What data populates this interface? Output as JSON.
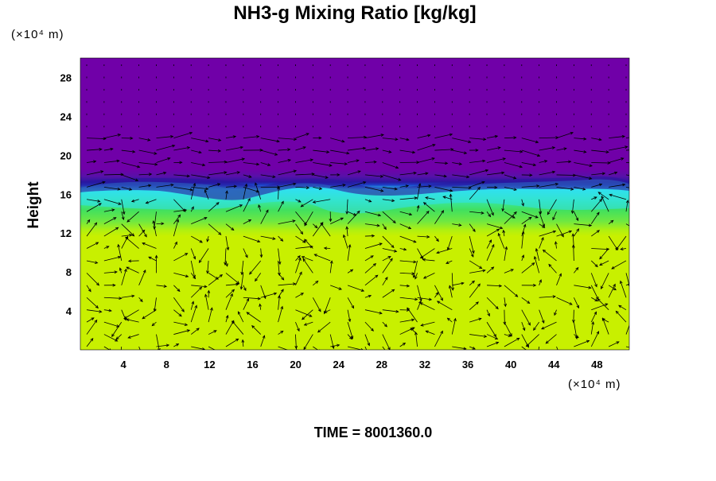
{
  "chart_data": {
    "type": "heatmap",
    "title": "NH3-g Mixing Ratio [kg/kg]",
    "ylabel": "Height",
    "xunit": "(×10⁴ m)",
    "yunit": "(×10⁴ m)",
    "footer": "TIME = 8001360.0",
    "xlim": [
      0,
      51
    ],
    "ylim": [
      0,
      30
    ],
    "xticks": [
      4,
      8,
      12,
      16,
      20,
      24,
      28,
      32,
      36,
      40,
      44,
      48
    ],
    "yticks": [
      4,
      8,
      12,
      16,
      20,
      24,
      28
    ],
    "overlay": "wind vectors",
    "colors": {
      "background_top": "#7000a8",
      "dark_band": "#2a18a0",
      "cyan": "#30e0f0",
      "green": "#40e060",
      "yellow_green": "#c8f000",
      "vectors": "#000000"
    },
    "layers": [
      {
        "name": "lower",
        "from": 0,
        "to": 12.5,
        "color": "#c8f000"
      },
      {
        "name": "transition",
        "from": 12.5,
        "to": 14,
        "color": "#80e838"
      },
      {
        "name": "green",
        "from": 14,
        "to": 15.5,
        "color": "#40e060"
      },
      {
        "name": "cyan",
        "from": 15.5,
        "to": 16.5,
        "color": "#30e0f0"
      },
      {
        "name": "dark_band",
        "from": 16.5,
        "to": 17.3,
        "color": "#2a18a0"
      },
      {
        "name": "upper",
        "from": 17.3,
        "to": 30,
        "color": "#7000a8"
      }
    ]
  }
}
